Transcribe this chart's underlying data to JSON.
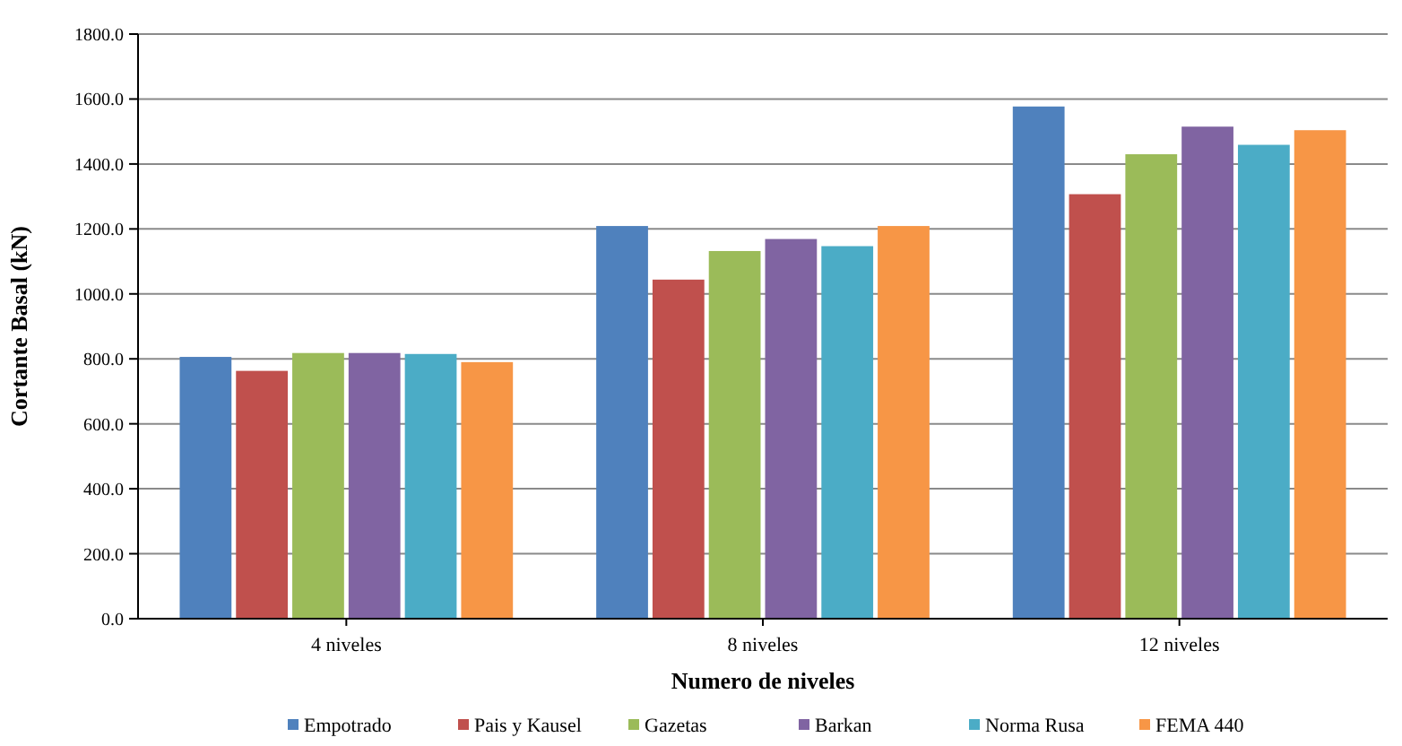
{
  "chart_data": {
    "type": "bar",
    "xlabel": "Numero de niveles",
    "ylabel": "Cortante Basal (kN)",
    "categories": [
      "4 niveles",
      "8 niveles",
      "12 niveles"
    ],
    "series": [
      {
        "name": "Empotrado",
        "color": "#4f81bd",
        "values": [
          806,
          1209,
          1577
        ]
      },
      {
        "name": "Pais y Kausel",
        "color": "#c0504d",
        "values": [
          763,
          1044,
          1307
        ]
      },
      {
        "name": "Gazetas",
        "color": "#9bbb59",
        "values": [
          818,
          1132,
          1430
        ]
      },
      {
        "name": "Barkan",
        "color": "#8064a2",
        "values": [
          818,
          1169,
          1515
        ]
      },
      {
        "name": "Norma Rusa",
        "color": "#4bacc6",
        "values": [
          815,
          1147,
          1459
        ]
      },
      {
        "name": "FEMA 440",
        "color": "#f79646",
        "values": [
          790,
          1209,
          1504
        ]
      }
    ],
    "ylim": [
      0,
      1800
    ],
    "yticks": [
      {
        "value": 0,
        "label": "0.0"
      },
      {
        "value": 200,
        "label": "200.0"
      },
      {
        "value": 400,
        "label": "400.0"
      },
      {
        "value": 600,
        "label": "600.0"
      },
      {
        "value": 800,
        "label": "800.0"
      },
      {
        "value": 1000,
        "label": "1000.0"
      },
      {
        "value": 1200,
        "label": "1200.0"
      },
      {
        "value": 1400,
        "label": "1400.0"
      },
      {
        "value": 1600,
        "label": "1600.0"
      },
      {
        "value": 1800,
        "label": "1800.0"
      }
    ],
    "grid": "y",
    "legend": "bottom"
  }
}
